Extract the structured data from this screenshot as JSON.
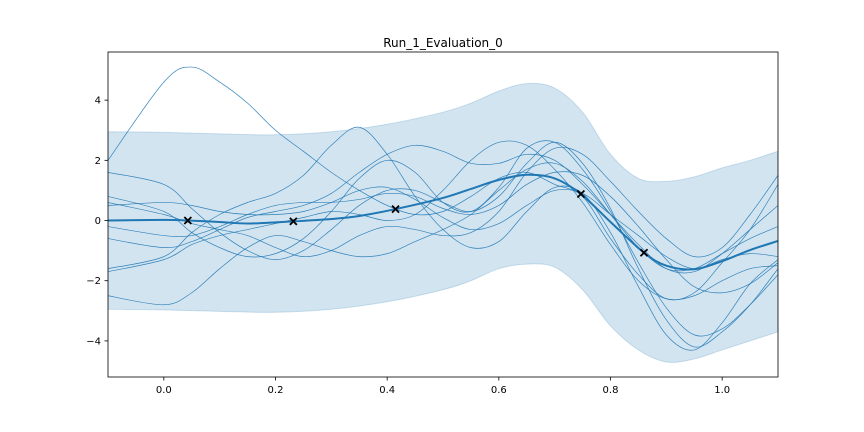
{
  "chart_data": {
    "type": "line",
    "title": "Run_1_Evaluation_0",
    "xlabel": "",
    "ylabel": "",
    "xlim": [
      -0.1,
      1.1
    ],
    "ylim": [
      -5.2,
      5.6
    ],
    "x_ticks": [
      0.0,
      0.2,
      0.4,
      0.6,
      0.8,
      1.0
    ],
    "x_tick_labels": [
      "0.0",
      "0.2",
      "0.4",
      "0.6",
      "0.8",
      "1.0"
    ],
    "y_ticks": [
      -4,
      -2,
      0,
      2,
      4
    ],
    "y_tick_labels": [
      "−4",
      "−2",
      "0",
      "2",
      "4"
    ],
    "grid": false,
    "legend": "none",
    "colors": {
      "mean": "#1f77b4",
      "band": "#1f77b4",
      "samples": "#1f77b4",
      "observations": "#000000"
    },
    "mean": {
      "x": [
        -0.1,
        0.0,
        0.043,
        0.1,
        0.15,
        0.2,
        0.232,
        0.3,
        0.35,
        0.415,
        0.5,
        0.55,
        0.6,
        0.65,
        0.7,
        0.747,
        0.8,
        0.86,
        0.9,
        0.95,
        1.0,
        1.05,
        1.1
      ],
      "values": [
        0.0,
        0.02,
        0.0,
        -0.05,
        -0.1,
        -0.06,
        -0.03,
        0.05,
        0.15,
        0.38,
        0.75,
        1.05,
        1.35,
        1.52,
        1.4,
        0.88,
        -0.05,
        -1.07,
        -1.5,
        -1.62,
        -1.35,
        -0.98,
        -0.68
      ]
    },
    "confidence_band": {
      "x": [
        -0.1,
        0.0,
        0.1,
        0.2,
        0.3,
        0.4,
        0.5,
        0.55,
        0.6,
        0.65,
        0.7,
        0.75,
        0.8,
        0.85,
        0.9,
        0.95,
        1.0,
        1.05,
        1.1
      ],
      "upper": [
        2.95,
        2.93,
        2.88,
        2.85,
        2.95,
        3.2,
        3.6,
        3.9,
        4.3,
        4.55,
        4.4,
        3.6,
        2.2,
        1.4,
        1.3,
        1.45,
        1.75,
        2.0,
        2.3
      ],
      "lower": [
        -2.95,
        -2.97,
        -3.02,
        -3.05,
        -2.95,
        -2.7,
        -2.3,
        -2.0,
        -1.6,
        -1.45,
        -1.55,
        -2.3,
        -3.5,
        -4.3,
        -4.7,
        -4.6,
        -4.3,
        -4.0,
        -3.7
      ]
    },
    "observations": {
      "x": [
        0.043,
        0.232,
        0.415,
        0.747,
        0.86
      ],
      "values": [
        0.0,
        -0.03,
        0.38,
        0.88,
        -1.07
      ]
    },
    "samples_x": [
      -0.1,
      0.0,
      0.05,
      0.1,
      0.15,
      0.2,
      0.25,
      0.3,
      0.35,
      0.4,
      0.45,
      0.5,
      0.55,
      0.6,
      0.65,
      0.7,
      0.75,
      0.8,
      0.85,
      0.9,
      0.95,
      1.0,
      1.05,
      1.1
    ],
    "samples": [
      {
        "values": [
          2.0,
          4.6,
          5.1,
          4.6,
          3.9,
          3.0,
          2.3,
          1.6,
          1.0,
          0.5,
          0.2,
          0.3,
          0.8,
          1.4,
          1.6,
          1.2,
          0.8,
          -0.6,
          -1.8,
          -2.6,
          -2.4,
          -1.4,
          -0.3,
          1.2
        ]
      },
      {
        "values": [
          -1.6,
          -1.2,
          -0.4,
          0.2,
          0.6,
          0.9,
          1.5,
          2.5,
          3.1,
          2.2,
          0.8,
          -0.3,
          -0.9,
          -0.7,
          0.3,
          1.1,
          0.9,
          -0.4,
          -2.2,
          -3.8,
          -4.3,
          -3.4,
          -2.1,
          -1.3
        ]
      },
      {
        "values": [
          1.6,
          1.2,
          0.4,
          -0.4,
          -1.0,
          -1.3,
          -1.0,
          -0.3,
          0.5,
          1.0,
          1.0,
          0.6,
          0.3,
          0.8,
          1.9,
          2.6,
          1.9,
          0.4,
          -1.6,
          -3.3,
          -4.2,
          -3.7,
          -2.8,
          -1.6
        ]
      },
      {
        "values": [
          -1.7,
          -1.3,
          -0.8,
          -0.5,
          -0.3,
          -0.1,
          0.1,
          0.3,
          0.2,
          0.0,
          0.2,
          1.0,
          2.0,
          2.6,
          2.5,
          1.7,
          0.6,
          -0.8,
          -2.0,
          -2.6,
          -2.5,
          -2.0,
          -1.6,
          -1.5
        ]
      },
      {
        "values": [
          0.5,
          0.6,
          0.5,
          0.3,
          0.2,
          0.2,
          0.3,
          0.6,
          1.0,
          1.1,
          0.7,
          0.1,
          -0.3,
          -0.1,
          0.5,
          1.0,
          0.9,
          0.2,
          -0.5,
          -1.2,
          -1.6,
          -1.3,
          -1.1,
          -1.2
        ]
      },
      {
        "values": [
          -0.6,
          -0.9,
          -0.7,
          -0.3,
          0.1,
          0.3,
          0.5,
          0.9,
          1.6,
          2.2,
          2.5,
          2.3,
          1.9,
          1.9,
          2.2,
          2.0,
          1.2,
          0.2,
          -0.8,
          -1.6,
          -1.7,
          -1.1,
          -0.3,
          0.5
        ]
      },
      {
        "values": [
          0.8,
          0.3,
          -0.4,
          -0.9,
          -1.2,
          -1.1,
          -0.6,
          0.3,
          1.4,
          2.0,
          1.6,
          0.6,
          0.3,
          1.1,
          2.4,
          2.6,
          1.7,
          0.3,
          -1.4,
          -2.9,
          -3.8,
          -3.6,
          -2.8,
          -1.8
        ]
      },
      {
        "values": [
          -2.5,
          -2.8,
          -2.4,
          -1.6,
          -0.9,
          -0.5,
          -0.7,
          -1.0,
          -1.2,
          -1.1,
          -0.7,
          -0.3,
          0.2,
          1.0,
          1.7,
          1.9,
          1.3,
          0.2,
          -0.9,
          -1.6,
          -1.6,
          -1.1,
          -0.6,
          -0.2
        ]
      },
      {
        "values": [
          0.6,
          0.2,
          -0.1,
          -0.3,
          -0.5,
          -0.9,
          -1.2,
          -1.0,
          -0.5,
          -0.2,
          -0.3,
          -0.5,
          -0.4,
          0.3,
          1.6,
          2.4,
          2.2,
          1.3,
          0.3,
          -0.6,
          -1.2,
          -0.9,
          0.2,
          1.5
        ]
      },
      {
        "values": [
          -0.2,
          -0.5,
          -0.5,
          -0.2,
          0.2,
          0.5,
          0.6,
          0.6,
          0.7,
          0.9,
          0.8,
          0.4,
          0.2,
          0.5,
          1.2,
          1.6,
          1.5,
          0.8,
          -0.2,
          -1.3,
          -2.2,
          -2.4,
          -2.1,
          -1.4
        ]
      }
    ]
  }
}
